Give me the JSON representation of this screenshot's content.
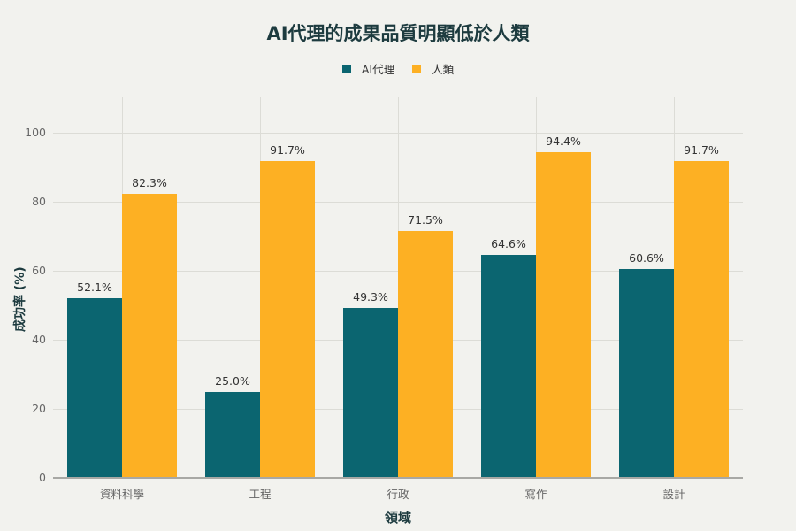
{
  "chart_data": {
    "type": "bar",
    "title": "AI代理的成果品質明顯低於人類",
    "xlabel": "領域",
    "ylabel": "成功率 (%)",
    "categories": [
      "資料科學",
      "工程",
      "行政",
      "寫作",
      "設計"
    ],
    "series": [
      {
        "name": "AI代理",
        "color": "#0b6570",
        "values": [
          52.1,
          25.0,
          49.3,
          64.6,
          60.6
        ],
        "labels": [
          "52.1%",
          "25.0%",
          "49.3%",
          "64.6%",
          "60.6%"
        ]
      },
      {
        "name": "人類",
        "color": "#fdb023",
        "values": [
          82.3,
          91.7,
          71.5,
          94.4,
          91.7
        ],
        "labels": [
          "82.3%",
          "91.7%",
          "71.5%",
          "94.4%",
          "91.7%"
        ]
      }
    ],
    "yticks": [
      "0",
      "20",
      "40",
      "60",
      "80",
      "100"
    ],
    "ylim": [
      0,
      110
    ],
    "grid": true,
    "legend_position": "top"
  }
}
